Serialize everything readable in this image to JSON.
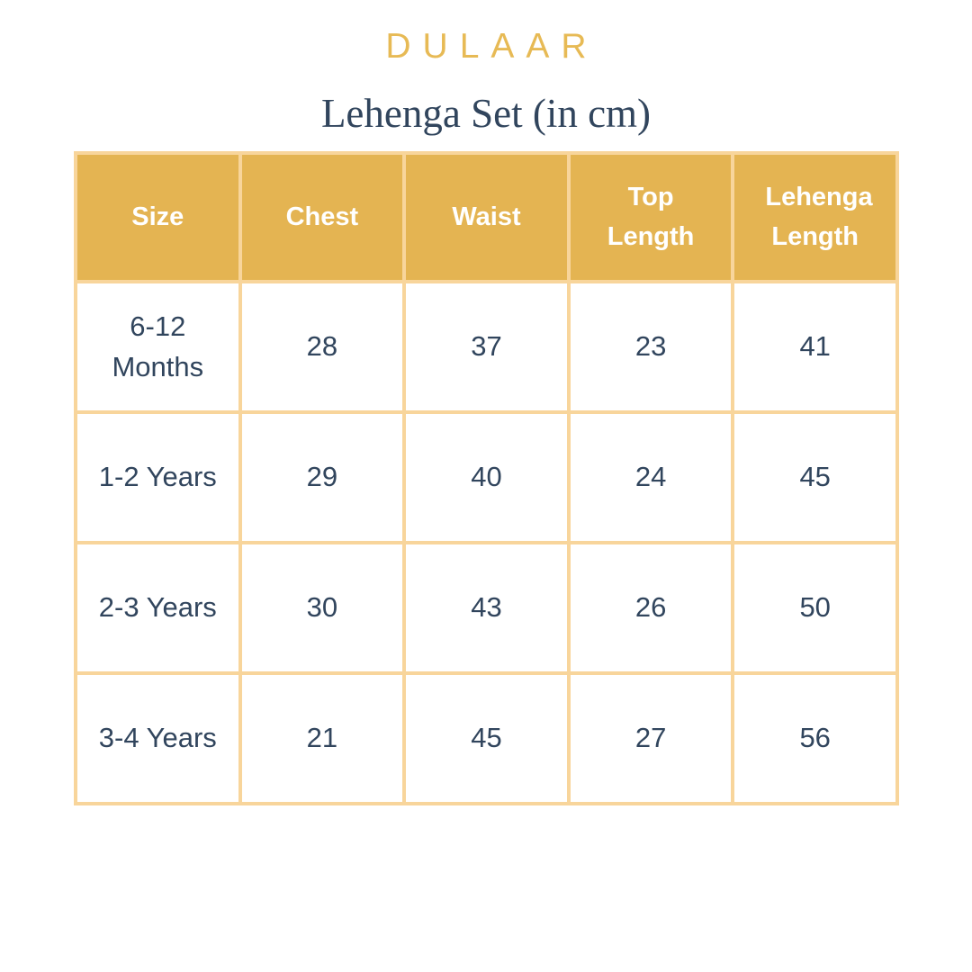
{
  "brand": "DULAAR",
  "colors": {
    "gold": "#E4B452",
    "border": "#F8D59B",
    "navy": "#31455D",
    "brand_gold": "#E7BA55",
    "white": "#FFFFFF"
  },
  "chart_data": {
    "type": "table",
    "title": "Lehenga Set (in cm)",
    "unit": "cm",
    "columns": [
      "Size",
      "Chest",
      "Waist",
      "Top Length",
      "Lehenga Length"
    ],
    "rows": [
      [
        "6-12 Months",
        "28",
        "37",
        "23",
        "41"
      ],
      [
        "1-2 Years",
        "29",
        "40",
        "24",
        "45"
      ],
      [
        "2-3 Years",
        "30",
        "43",
        "26",
        "50"
      ],
      [
        "3-4 Years",
        "21",
        "45",
        "27",
        "56"
      ]
    ]
  }
}
